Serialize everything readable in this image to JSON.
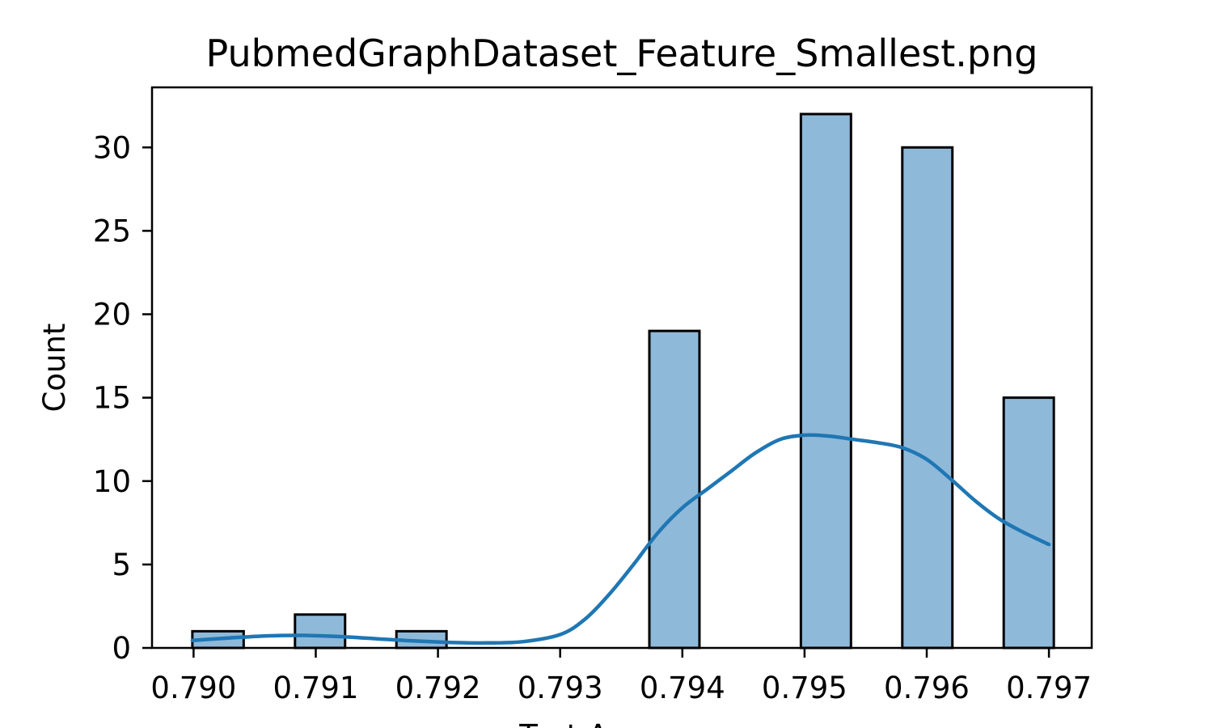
{
  "chart_data": {
    "type": "bar",
    "title": "PubmedGraphDataset_Feature_Smallest.png",
    "xlabel": "Test Accuracy",
    "ylabel": "Count",
    "xlim": [
      0.78966,
      0.79735
    ],
    "ylim": [
      0,
      33.6
    ],
    "xticks": [
      0.79,
      0.791,
      0.792,
      0.793,
      0.794,
      0.795,
      0.796,
      0.797
    ],
    "xtick_labels": [
      "0.790",
      "0.791",
      "0.792",
      "0.793",
      "0.794",
      "0.795",
      "0.796",
      "0.797"
    ],
    "yticks": [
      0,
      5,
      10,
      15,
      20,
      25,
      30
    ],
    "ytick_labels": [
      "0",
      "5",
      "10",
      "15",
      "20",
      "25",
      "30"
    ],
    "bins": [
      {
        "x0": 0.78999,
        "x1": 0.79041,
        "count": 1
      },
      {
        "x0": 0.79083,
        "x1": 0.79124,
        "count": 2
      },
      {
        "x0": 0.79166,
        "x1": 0.79207,
        "count": 1
      },
      {
        "x0": 0.79373,
        "x1": 0.79414,
        "count": 19
      },
      {
        "x0": 0.79497,
        "x1": 0.79538,
        "count": 32
      },
      {
        "x0": 0.7958,
        "x1": 0.79621,
        "count": 30
      },
      {
        "x0": 0.79663,
        "x1": 0.79704,
        "count": 15
      }
    ],
    "kde": {
      "x": [
        0.78999,
        0.7903,
        0.7906,
        0.7909,
        0.7912,
        0.7915,
        0.7918,
        0.7921,
        0.7924,
        0.7927,
        0.793,
        0.7932,
        0.7934,
        0.7936,
        0.7938,
        0.794,
        0.7942,
        0.7944,
        0.7946,
        0.7948,
        0.795,
        0.7952,
        0.7954,
        0.7956,
        0.7958,
        0.796,
        0.7962,
        0.7964,
        0.7966,
        0.7968,
        0.797
      ],
      "y": [
        0.45,
        0.6,
        0.72,
        0.75,
        0.68,
        0.55,
        0.42,
        0.33,
        0.3,
        0.38,
        0.8,
        1.7,
        3.2,
        5.0,
        6.9,
        8.4,
        9.5,
        10.6,
        11.7,
        12.5,
        12.75,
        12.7,
        12.5,
        12.3,
        12.0,
        11.3,
        10.1,
        8.8,
        7.7,
        6.9,
        6.2
      ]
    },
    "colors": {
      "bar_fill": "#8fb9d9",
      "bar_edge": "#000000",
      "kde_line": "#1f77b4"
    },
    "grid": false,
    "legend": "none"
  }
}
